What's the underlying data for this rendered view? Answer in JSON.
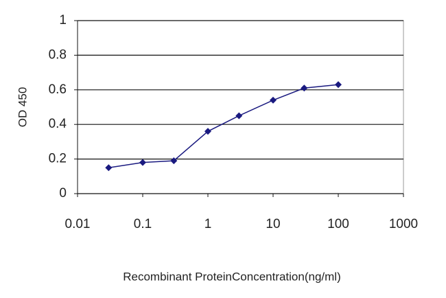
{
  "chart_data": {
    "type": "line",
    "x_label": "Recombinant ProteinConcentration(ng/ml)",
    "y_label": "OD 450",
    "x": [
      0.03,
      0.1,
      0.3,
      1,
      3,
      10,
      30,
      100
    ],
    "series": [
      {
        "color": "#1a1a80",
        "values": [
          0.15,
          0.18,
          0.19,
          0.36,
          0.45,
          0.54,
          0.61,
          0.63
        ]
      }
    ],
    "xscale": "log",
    "xlim": [
      0.01,
      1000
    ],
    "xticks": [
      0.01,
      0.1,
      1,
      10,
      100,
      1000
    ],
    "ylim": [
      0,
      1
    ],
    "yticks": [
      0,
      0.2,
      0.4,
      0.6,
      0.8,
      1
    ],
    "grid": true
  }
}
